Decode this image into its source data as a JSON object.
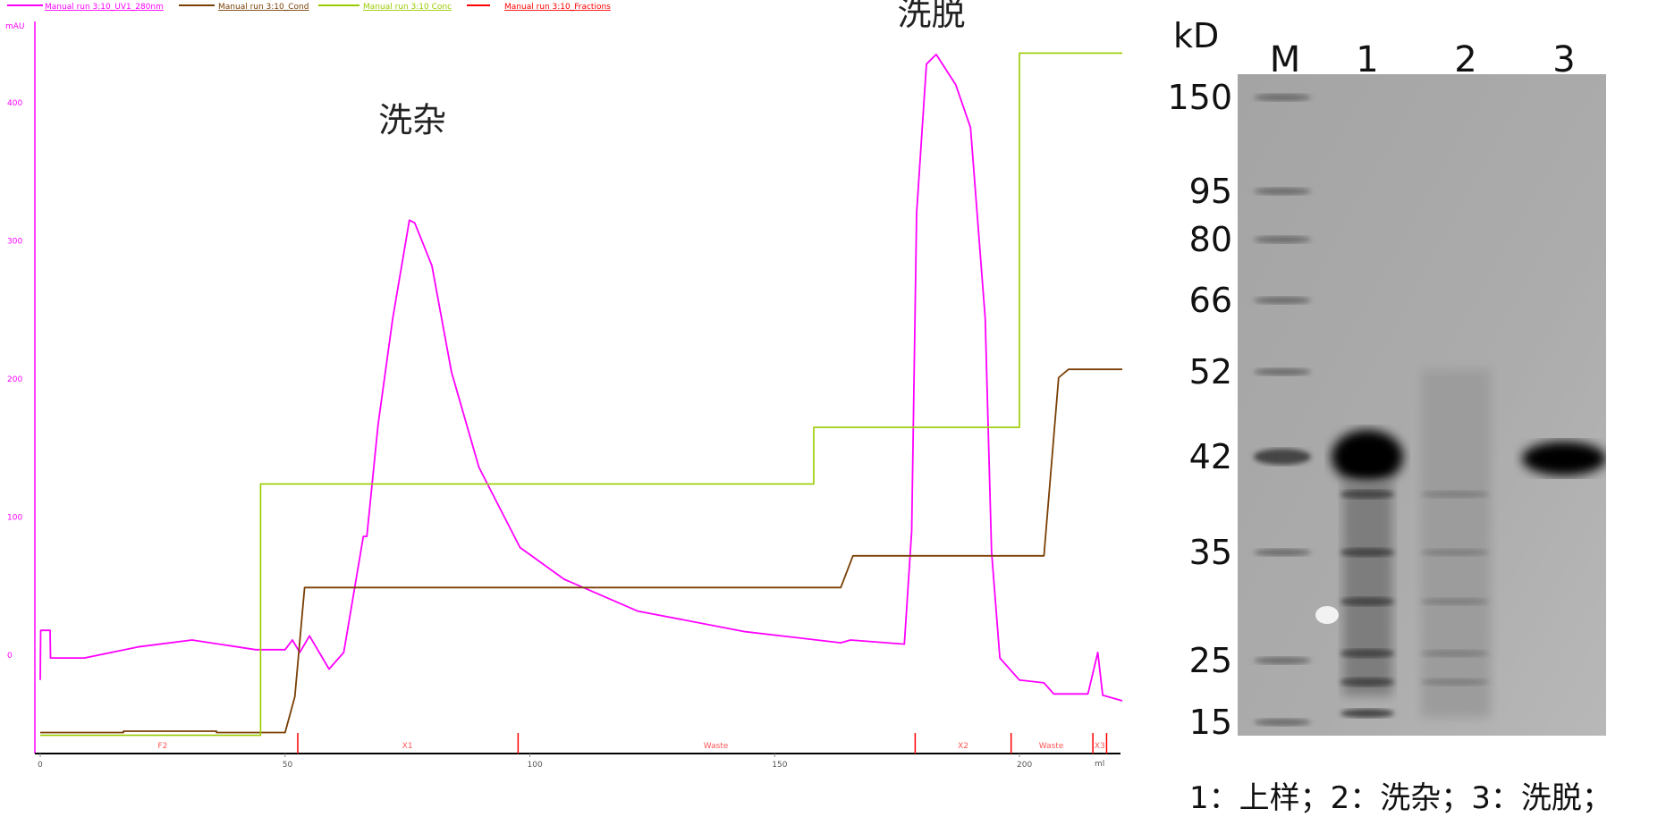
{
  "chart_data": {
    "type": "line",
    "title": "",
    "legend": [
      "Manual run 3:10_UV1_280nm",
      "Manual run 3:10_Cond",
      "Manual run 3:10 Conc",
      "Manual run 3:10_Fractions"
    ],
    "legend_placement": "top-left",
    "ylabel": "mAU",
    "xlabel": "ml",
    "xlim": [
      0,
      223
    ],
    "ylim": [
      -60,
      450
    ],
    "x_ticks": [
      0,
      50,
      100,
      150,
      200
    ],
    "y_ticks": [
      0,
      100,
      200,
      300,
      400
    ],
    "colors": {
      "uv": "#ff00ff",
      "cond": "#7a3f05",
      "conc": "#99cc00",
      "fractions": "#ff0000"
    },
    "series": [
      {
        "name": "Manual run 3:10_UV1_280nm",
        "x": [
          0,
          0.1,
          2,
          2.1,
          9,
          20,
          31,
          44,
          50,
          51.5,
          53,
          55,
          59,
          62,
          66,
          66.7,
          69,
          72,
          75.4,
          76.5,
          80,
          84,
          89.6,
          98,
          107,
          122,
          144,
          163.5,
          165.5,
          176.5,
          178,
          179,
          181,
          183,
          187,
          190,
          193,
          194.3,
          196,
          200,
          205,
          207,
          214,
          216,
          217,
          221
        ],
        "y": [
          -18,
          18,
          18,
          -2,
          -2,
          6,
          11,
          4,
          4,
          11,
          2,
          14,
          -10,
          2,
          86,
          86,
          167,
          244,
          315,
          313,
          282,
          205,
          136,
          78,
          55,
          32,
          17,
          9,
          11,
          8,
          90,
          320,
          428,
          435,
          413,
          382,
          244,
          75,
          -2,
          -18,
          -20,
          -28,
          -28,
          2,
          -29,
          -33
        ]
      },
      {
        "name": "Manual run 3:10_Cond",
        "x": [
          0,
          17,
          17,
          36,
          36,
          50,
          52,
          54,
          163.5,
          166,
          205,
          208,
          210,
          221
        ],
        "y": [
          -56,
          -56,
          -55,
          -55,
          -56,
          -56,
          -30,
          49,
          49,
          72,
          72,
          201,
          207,
          207
        ]
      },
      {
        "name": "Manual run 3:10 Conc",
        "x": [
          0,
          45,
          45,
          158,
          158,
          200,
          200,
          221
        ],
        "y": [
          -58,
          -58,
          124,
          124,
          165,
          165,
          436,
          436
        ]
      }
    ],
    "fractions": {
      "marks": [
        52.6,
        97.6,
        178.7,
        198.3,
        215,
        217.8
      ],
      "labels": [
        {
          "text": "F2",
          "x": 25
        },
        {
          "text": "X1",
          "x": 75
        },
        {
          "text": "Waste",
          "x": 138
        },
        {
          "text": "X2",
          "x": 188.5
        },
        {
          "text": "Waste",
          "x": 206.5
        },
        {
          "text": "X3",
          "x": 216.4
        }
      ]
    },
    "annotations": [
      {
        "text": "洗杂",
        "x": 76,
        "y": 340
      },
      {
        "text": "洗脱",
        "x": 182,
        "y": 450
      }
    ]
  },
  "gel": {
    "unit_label": "kD",
    "lanes": [
      "M",
      "1",
      "2",
      "3"
    ],
    "markers": [
      "150",
      "95",
      "80",
      "66",
      "52",
      "42",
      "35",
      "25",
      "15"
    ],
    "caption": "1：上样；2：洗杂；3：洗脱；"
  }
}
